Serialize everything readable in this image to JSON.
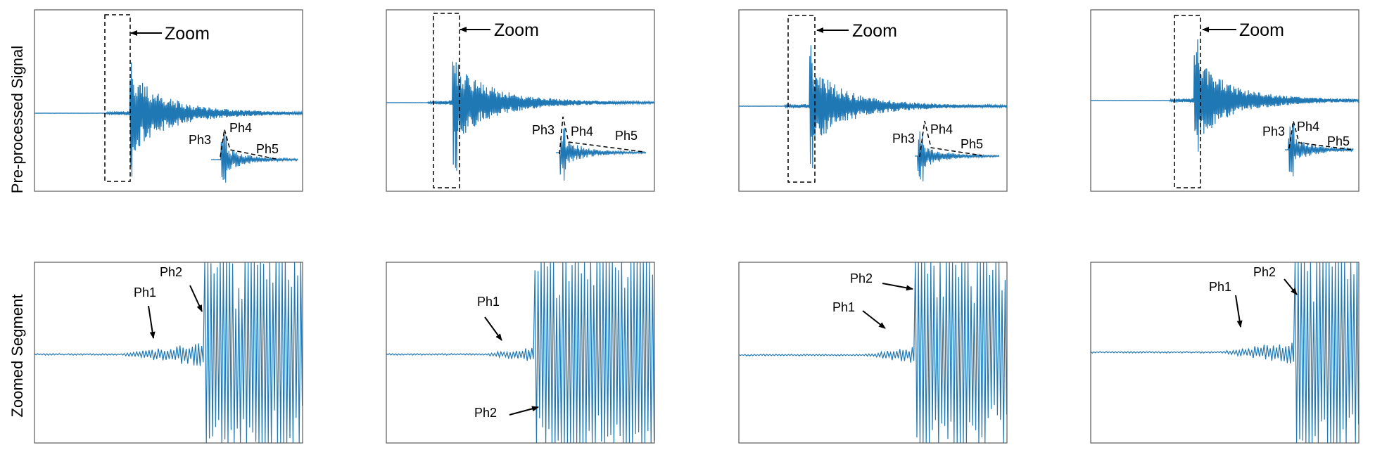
{
  "row_labels": [
    "Pre-processed Signal",
    "Zoomed Segment"
  ],
  "annotation_text": {
    "zoom": "Zoom",
    "ph1": "Ph1",
    "ph2": "Ph2",
    "ph3": "Ph3",
    "ph4": "Ph4",
    "ph5": "Ph5"
  },
  "colors": {
    "signal": "#1f77b4",
    "axes": "#595959",
    "annotation": "#000000"
  },
  "chart_data": [
    {
      "type": "line",
      "row": "Pre-processed Signal",
      "column": 1,
      "series_style": "waveform",
      "zoom_box": true,
      "phases": [
        "Ph3",
        "Ph4",
        "Ph5"
      ]
    },
    {
      "type": "line",
      "row": "Pre-processed Signal",
      "column": 2,
      "series_style": "waveform",
      "zoom_box": true,
      "phases": [
        "Ph3",
        "Ph4",
        "Ph5"
      ]
    },
    {
      "type": "line",
      "row": "Pre-processed Signal",
      "column": 3,
      "series_style": "waveform",
      "zoom_box": true,
      "phases": [
        "Ph3",
        "Ph4",
        "Ph5"
      ]
    },
    {
      "type": "line",
      "row": "Pre-processed Signal",
      "column": 4,
      "series_style": "waveform",
      "zoom_box": true,
      "phases": [
        "Ph3",
        "Ph4",
        "Ph5"
      ]
    },
    {
      "type": "line",
      "row": "Zoomed Segment",
      "column": 1,
      "series_style": "waveform",
      "phases": [
        "Ph1",
        "Ph2"
      ]
    },
    {
      "type": "line",
      "row": "Zoomed Segment",
      "column": 2,
      "series_style": "waveform",
      "phases": [
        "Ph1",
        "Ph2"
      ]
    },
    {
      "type": "line",
      "row": "Zoomed Segment",
      "column": 3,
      "series_style": "waveform",
      "phases": [
        "Ph1",
        "Ph2"
      ]
    },
    {
      "type": "line",
      "row": "Zoomed Segment",
      "column": 4,
      "series_style": "waveform",
      "phases": [
        "Ph1",
        "Ph2"
      ]
    }
  ]
}
